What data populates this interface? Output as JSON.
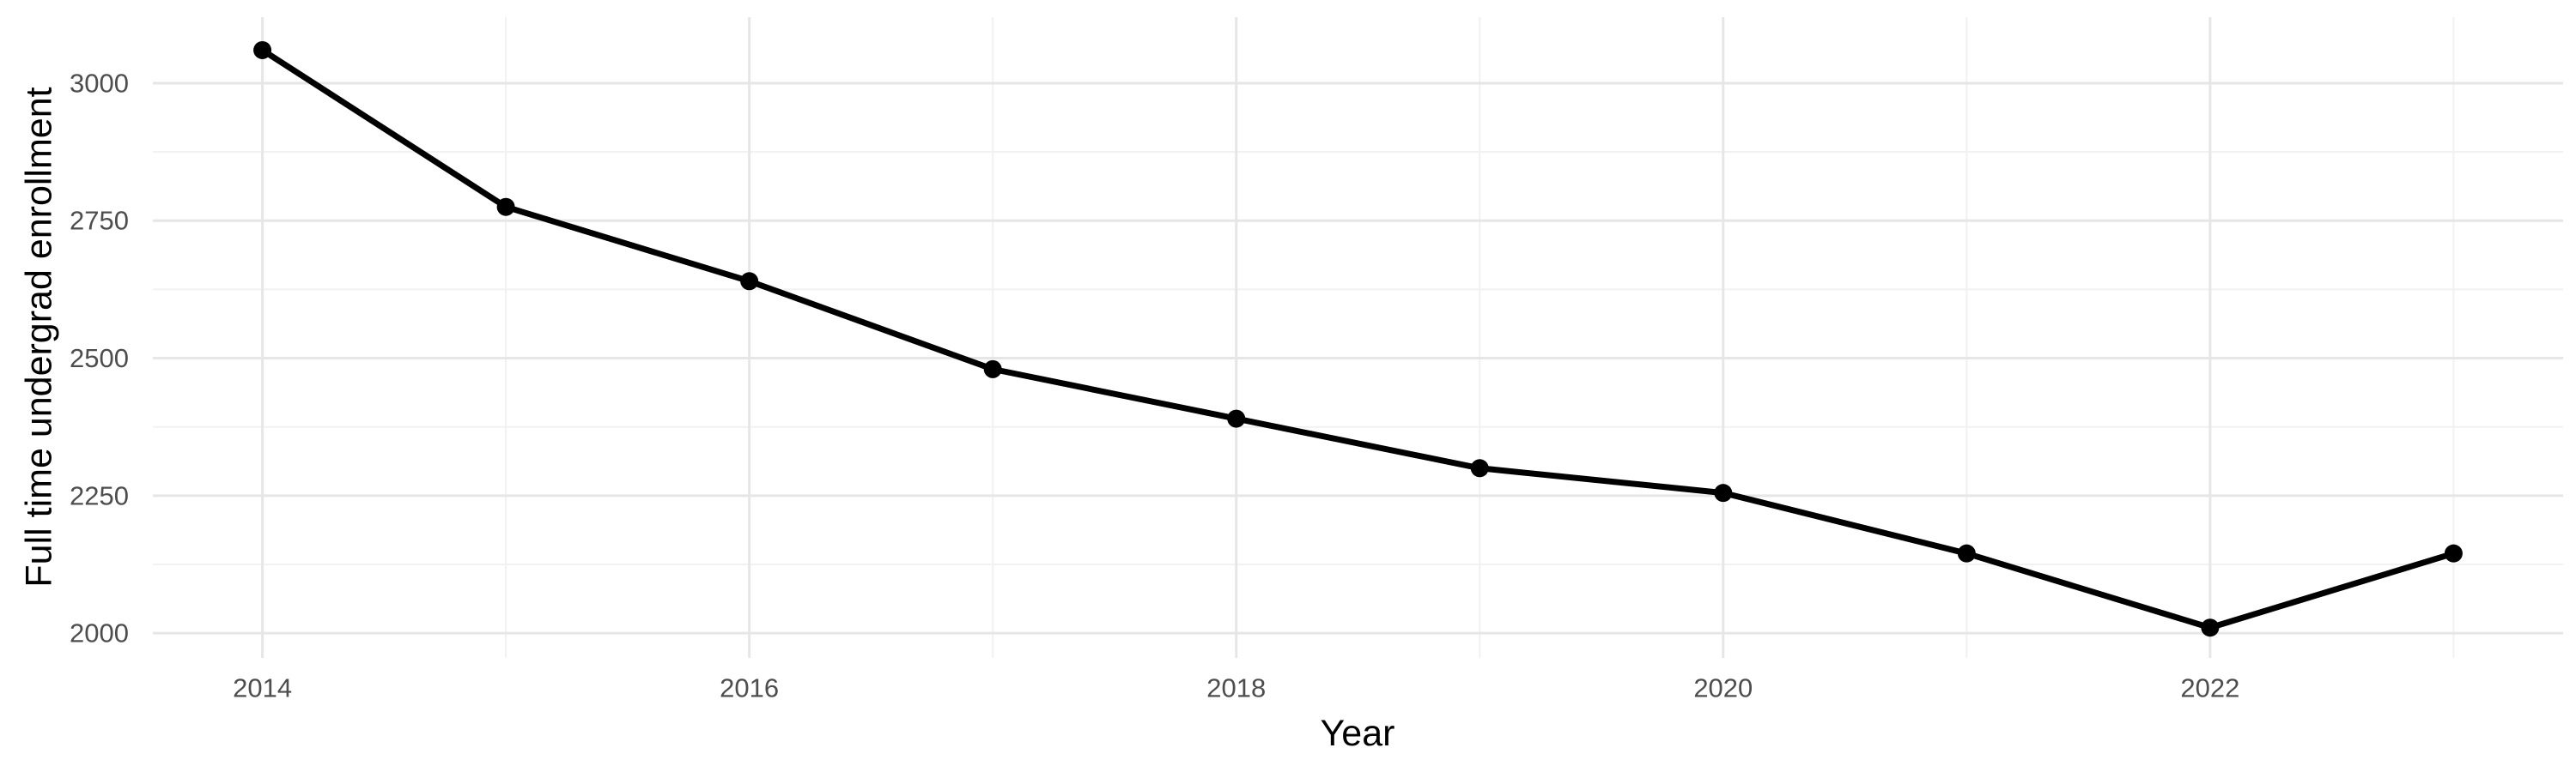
{
  "chart_data": {
    "type": "line",
    "title": "",
    "xlabel": "Year",
    "ylabel": "Full time undergrad enrollment",
    "x": [
      2014,
      2015,
      2016,
      2017,
      2018,
      2019,
      2020,
      2021,
      2022,
      2023
    ],
    "series": [
      {
        "name": "Full time undergrad enrollment",
        "values": [
          3060,
          2775,
          2640,
          2480,
          2390,
          2300,
          2255,
          2145,
          2010,
          2145
        ]
      }
    ],
    "xlim": [
      2013.55,
      2023.45
    ],
    "ylim": [
      1955,
      3120
    ],
    "x_major_ticks": [
      2014,
      2016,
      2018,
      2020,
      2022
    ],
    "x_minor_ticks": [
      2015,
      2017,
      2019,
      2021,
      2023
    ],
    "x_tick_labels": [
      "2014",
      "2016",
      "2018",
      "2020",
      "2022"
    ],
    "y_major_ticks": [
      2000,
      2250,
      2500,
      2750,
      3000
    ],
    "y_minor_ticks": [
      2125,
      2375,
      2625,
      2875
    ],
    "y_tick_labels": [
      "2000",
      "2250",
      "2500",
      "2750",
      "3000"
    ],
    "grid": true,
    "legend_position": "none",
    "colors": {
      "line": "#000000",
      "point": "#000000",
      "grid_major": "#e6e6e6",
      "grid_minor": "#f1f1f1",
      "tick_label": "#4d4d4d",
      "axis_title": "#000000",
      "background": "#ffffff"
    }
  }
}
